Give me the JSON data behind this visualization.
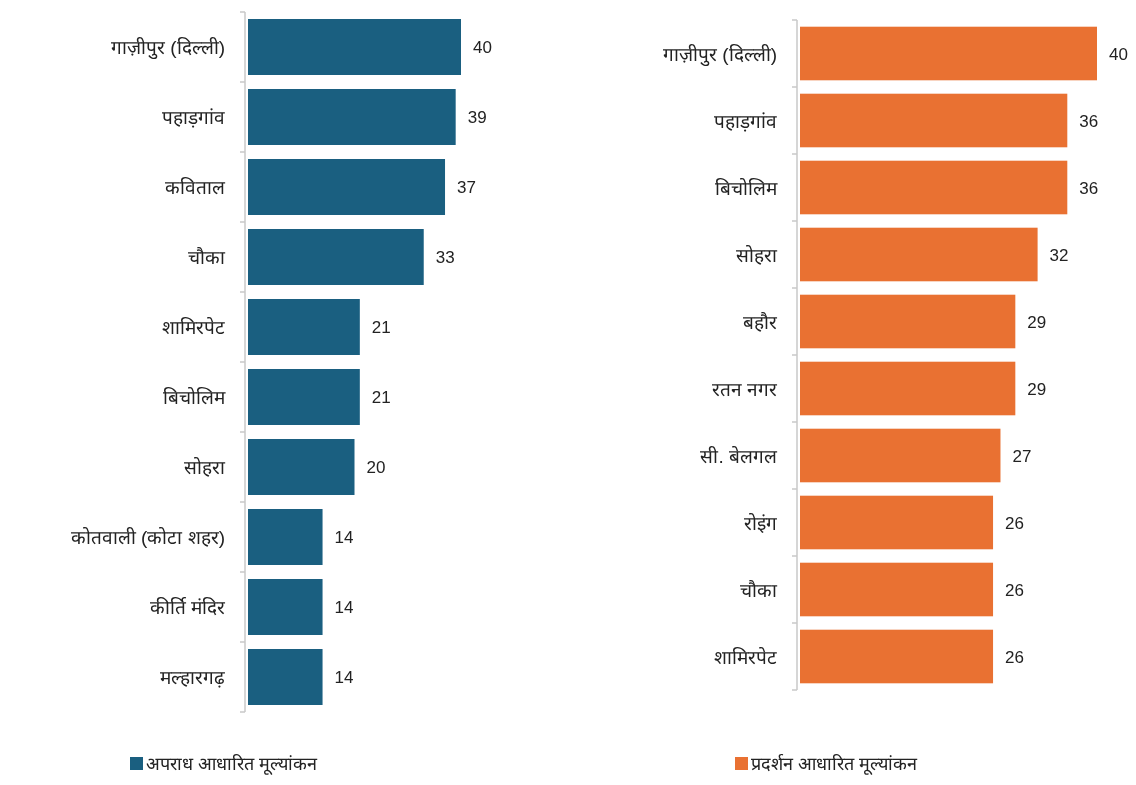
{
  "chart_data": [
    {
      "type": "bar",
      "orientation": "horizontal",
      "data_labels": true,
      "legend": "bottom",
      "categories": [
        "गाज़ीपुर (दिल्ली)",
        "पहाड़गांव",
        "कविताल",
        "चौका",
        "शामिरपेट",
        "बिचोलिम",
        "सोहरा",
        "कोतवाली (कोटा शहर)",
        "कीर्ति मंदिर",
        "मल्हारगढ़"
      ],
      "series": [
        {
          "name": "अपराध आधारित मूल्यांकन",
          "color": "#1a5f80",
          "values": [
            40,
            39,
            37,
            33,
            21,
            21,
            20,
            14,
            14,
            14
          ]
        }
      ]
    },
    {
      "type": "bar",
      "orientation": "horizontal",
      "data_labels": true,
      "legend": "bottom",
      "categories": [
        "गाज़ीपुर (दिल्ली)",
        "पहाड़गांव",
        "बिचोलिम",
        "सोहरा",
        "बहौर",
        "रतन नगर",
        "सी. बेलगल",
        "रोइंग",
        "चौका",
        "शामिरपेट"
      ],
      "series": [
        {
          "name": "प्रदर्शन आधारित मूल्यांकन",
          "color": "#e97132",
          "values": [
            40,
            36,
            36,
            32,
            29,
            29,
            27,
            26,
            26,
            26
          ]
        }
      ]
    }
  ]
}
